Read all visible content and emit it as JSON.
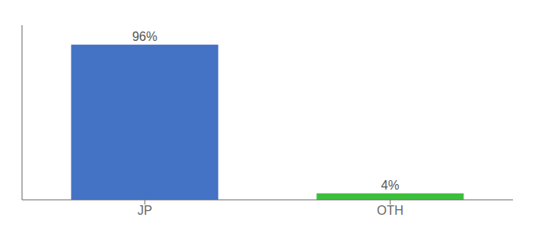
{
  "chart_data": {
    "type": "bar",
    "categories": [
      "JP",
      "OTH"
    ],
    "values": [
      96,
      4
    ],
    "value_labels": [
      "96%",
      "4%"
    ],
    "colors": [
      "#4472c4",
      "#3dbf3d"
    ],
    "ylim": [
      0,
      108
    ],
    "tick_labels": "x",
    "grid": false,
    "data_labels": true
  }
}
